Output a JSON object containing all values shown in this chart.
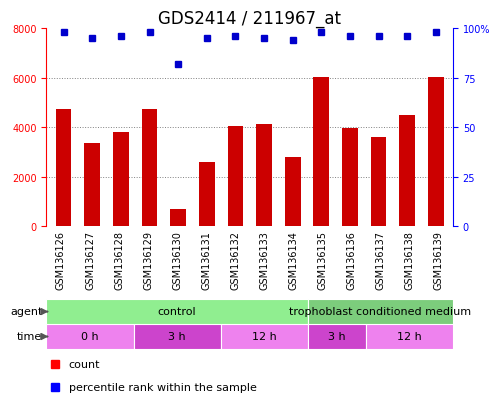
{
  "title": "GDS2414 / 211967_at",
  "samples": [
    "GSM136126",
    "GSM136127",
    "GSM136128",
    "GSM136129",
    "GSM136130",
    "GSM136131",
    "GSM136132",
    "GSM136133",
    "GSM136134",
    "GSM136135",
    "GSM136136",
    "GSM136137",
    "GSM136138",
    "GSM136139"
  ],
  "counts": [
    4750,
    3350,
    3800,
    4750,
    700,
    2600,
    4050,
    4150,
    2800,
    6050,
    3950,
    3600,
    4500,
    6050
  ],
  "percentile_ranks": [
    98,
    95,
    96,
    98,
    82,
    95,
    96,
    95,
    94,
    98,
    96,
    96,
    96,
    98
  ],
  "bar_color": "#cc0000",
  "dot_color": "#0000cc",
  "ylim_left": [
    0,
    8000
  ],
  "ylim_right": [
    0,
    100
  ],
  "yticks_left": [
    0,
    2000,
    4000,
    6000,
    8000
  ],
  "yticks_right": [
    0,
    25,
    50,
    75,
    100
  ],
  "ytick_right_labels": [
    "0",
    "25",
    "50",
    "75",
    "100%"
  ],
  "agent_groups": [
    {
      "label": "control",
      "start": 0,
      "end": 9,
      "color": "#90EE90"
    },
    {
      "label": "trophoblast conditioned medium",
      "start": 9,
      "end": 14,
      "color": "#7CCD7C"
    }
  ],
  "time_groups": [
    {
      "label": "0 h",
      "start": 0,
      "end": 3,
      "color": "#EE82EE"
    },
    {
      "label": "3 h",
      "start": 3,
      "end": 6,
      "color": "#CC44CC"
    },
    {
      "label": "12 h",
      "start": 6,
      "end": 9,
      "color": "#EE82EE"
    },
    {
      "label": "3 h",
      "start": 9,
      "end": 11,
      "color": "#CC44CC"
    },
    {
      "label": "12 h",
      "start": 11,
      "end": 14,
      "color": "#EE82EE"
    }
  ],
  "title_fontsize": 12,
  "tick_fontsize": 7,
  "label_fontsize": 8,
  "row_label_fontsize": 8,
  "legend_fontsize": 8
}
